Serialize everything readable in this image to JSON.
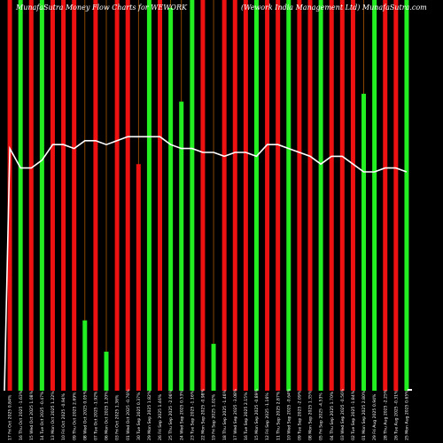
{
  "chart_data": {
    "type": "bar",
    "title_left": "MunafaSutra Money Flow Charts for WEWORK",
    "title_right": "(Wework India Management Ltd) MunafaSutra.com",
    "colors": {
      "background": "#000000",
      "up": "#22ee22",
      "down": "#ee1111",
      "grid": "#aa5500",
      "line": "#ffffff",
      "text": "#ffffff"
    },
    "ylim": [
      0,
      100
    ],
    "categories": [
      "17 Fri Oct 2025 0.84%",
      "16 Thu Oct 2025 -1.63%",
      "15 Wed Oct 2025 1.08%",
      "14 Tue Oct 2025 -0.47%",
      "13 Mon Oct 2025 1.22%",
      "10 Fri Oct 2025 -0.94%",
      "09 Thu Oct 2025 2.69%",
      "08 Wed Oct 2025 0.05%",
      "07 Tue Oct 2025 -1.92%",
      "06 Mon Oct 2025 1.20%",
      "03 Fri Oct 2025 1.36%",
      "01 Wed Oct 2025 -0.76%",
      "30 Tue Sep 2025 0.37%",
      "29 Mon Sep 2025 1.82%",
      "26 Fri Sep 2025 1.46%",
      "25 Thu Sep 2025 -2.06%",
      "24 Wed Sep 2025 0.53%",
      "23 Tue Sep 2025 -1.16%",
      "22 Mon Sep 2025 -0.98%",
      "19 Fri Sep 2025 1.02%",
      "18 Thu Sep 2025 -1.46%",
      "17 Wed Sep 2025 -3.08%",
      "16 Tue Sep 2025 2.15%",
      "15 Mon Sep 2025 -0.89%",
      "12 Fri Sep 2025 -1.16%",
      "11 Thu Sep 2025 2.87%",
      "10 Wed Sep 2025 -0.64%",
      "09 Tue Sep 2025 -2.09%",
      "08 Mon Sep 2025 1.35%",
      "05 Fri Sep 2025 -4.53%",
      "04 Thu Sep 2025 1.70%",
      "03 Wed Sep 2025 -0.56%",
      "02 Tue Sep 2025 -1.84%",
      "01 Mon Sep 2025 2.80%",
      "29 Fri Aug 2025 0.94%",
      "28 Thu Aug 2025 -2.25%",
      "26 Tue Aug 2025 -0.31%",
      "25 Mon Aug 2025 0.65%"
    ],
    "series": [
      {
        "values": [
          100,
          100,
          100,
          100,
          100,
          100,
          100,
          18,
          100,
          10,
          100,
          100,
          58,
          100,
          100,
          98,
          74,
          100,
          100,
          12,
          100,
          100,
          100,
          100,
          100,
          100,
          100,
          100,
          100,
          100,
          100,
          100,
          100,
          76,
          100,
          100,
          100,
          100
        ],
        "directions": [
          "down",
          "up",
          "down",
          "up",
          "down",
          "down",
          "down",
          "up",
          "down",
          "up",
          "down",
          "down",
          "down",
          "up",
          "down",
          "up",
          "up",
          "up",
          "down",
          "up",
          "down",
          "down",
          "down",
          "up",
          "down",
          "down",
          "up",
          "down",
          "down",
          "up",
          "down",
          "down",
          "down",
          "up",
          "up",
          "down",
          "down",
          "up"
        ]
      }
    ],
    "line": [
      62,
      57,
      57,
      59,
      63,
      63,
      62,
      64,
      64,
      63,
      64,
      65,
      65,
      65,
      65,
      63,
      62,
      62,
      61,
      61,
      60,
      61,
      61,
      60,
      63,
      63,
      62,
      61,
      60,
      58,
      60,
      60,
      58,
      56,
      56,
      57,
      57,
      56
    ]
  }
}
